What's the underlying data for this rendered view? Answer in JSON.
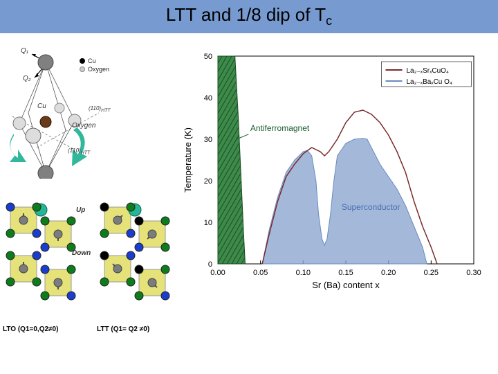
{
  "title_parts": {
    "pre": "LTT and 1/8 dip of T",
    "sub": "c"
  },
  "octahedron": {
    "atom_labels": {
      "cu": "Cu",
      "oxy": "Oxygen"
    },
    "legend": {
      "cu": "Cu",
      "ox": "Oxygen"
    },
    "axes": {
      "a": "(110)",
      "b": "(1̄10)",
      "suffix": "HTT"
    },
    "colors": {
      "apical": "#808080",
      "cu": "#6a3a1a",
      "oxy": "#dddddd",
      "arrow": "#30b79c"
    },
    "vec_labels": {
      "q1": "Q₁",
      "q2": "Q₂"
    }
  },
  "lto_ltt": {
    "up_label": "Up",
    "down_label": "Down",
    "lto": {
      "title": "LTO   (Q1=0,Q2≠0)"
    },
    "ltt": {
      "title": "LTT   (Q1= Q2 ≠0)"
    },
    "colors": {
      "octa_fill": "#e5e27a",
      "cu_center": "#7c7c7c",
      "apical_up": "#25b597",
      "o_type_a": "#1a3dce",
      "o_type_b": "#0c7c1c",
      "o_type_c": "#000000"
    }
  },
  "phase_chart": {
    "title": "",
    "xlabel": "Sr (Ba) content x",
    "ylabel": "Temperature (K)",
    "xlim": [
      0.0,
      0.3
    ],
    "xtick_step": 0.05,
    "ylim": [
      0,
      50
    ],
    "ytick_step": 10,
    "background_color": "#ffffff",
    "af_label": "Antiferromagnet",
    "af_label_color": "#195e2d",
    "sc_label": "Superconductor",
    "sc_label_color": "#476eb0",
    "legend": [
      {
        "label": "La₂₋ₓSrₓCuO₄",
        "color": "#7a2a2a"
      },
      {
        "label": "La₂₋ₓBaₓCu O₄",
        "color": "#6a8bbd"
      }
    ],
    "af_region": {
      "fill": "#3d8a4a",
      "hatch": "#1a4d24",
      "poly": [
        [
          0.0,
          50
        ],
        [
          0.02,
          50
        ],
        [
          0.024,
          35
        ],
        [
          0.03,
          8
        ],
        [
          0.032,
          0
        ],
        [
          0.0,
          0
        ]
      ]
    },
    "sr_curve": {
      "color": "#7a2a2a",
      "width": 1.5,
      "points": [
        [
          0.052,
          0
        ],
        [
          0.06,
          7
        ],
        [
          0.07,
          15
        ],
        [
          0.08,
          21
        ],
        [
          0.09,
          24
        ],
        [
          0.1,
          26.5
        ],
        [
          0.11,
          28
        ],
        [
          0.12,
          27
        ],
        [
          0.125,
          26
        ],
        [
          0.13,
          27
        ],
        [
          0.14,
          30
        ],
        [
          0.15,
          34
        ],
        [
          0.16,
          36.5
        ],
        [
          0.17,
          37
        ],
        [
          0.18,
          36
        ],
        [
          0.19,
          34
        ],
        [
          0.2,
          31
        ],
        [
          0.21,
          27
        ],
        [
          0.22,
          22
        ],
        [
          0.23,
          15
        ],
        [
          0.24,
          9
        ],
        [
          0.25,
          4
        ],
        [
          0.257,
          0
        ]
      ]
    },
    "ba_region": {
      "fill": "#8aa4d0",
      "opacity": 0.78,
      "poly": [
        [
          0.052,
          0
        ],
        [
          0.06,
          8
        ],
        [
          0.07,
          16
        ],
        [
          0.08,
          22
        ],
        [
          0.09,
          25
        ],
        [
          0.1,
          27
        ],
        [
          0.105,
          27.3
        ],
        [
          0.11,
          26
        ],
        [
          0.115,
          20
        ],
        [
          0.118,
          12
        ],
        [
          0.122,
          6
        ],
        [
          0.125,
          4.5
        ],
        [
          0.128,
          6
        ],
        [
          0.132,
          12
        ],
        [
          0.136,
          20
        ],
        [
          0.14,
          26
        ],
        [
          0.15,
          29
        ],
        [
          0.155,
          29.5
        ],
        [
          0.16,
          30
        ],
        [
          0.17,
          30.2
        ],
        [
          0.175,
          30
        ],
        [
          0.18,
          28
        ],
        [
          0.19,
          24
        ],
        [
          0.2,
          21
        ],
        [
          0.21,
          18
        ],
        [
          0.22,
          14
        ],
        [
          0.23,
          9
        ],
        [
          0.24,
          4
        ],
        [
          0.245,
          0
        ]
      ]
    }
  }
}
